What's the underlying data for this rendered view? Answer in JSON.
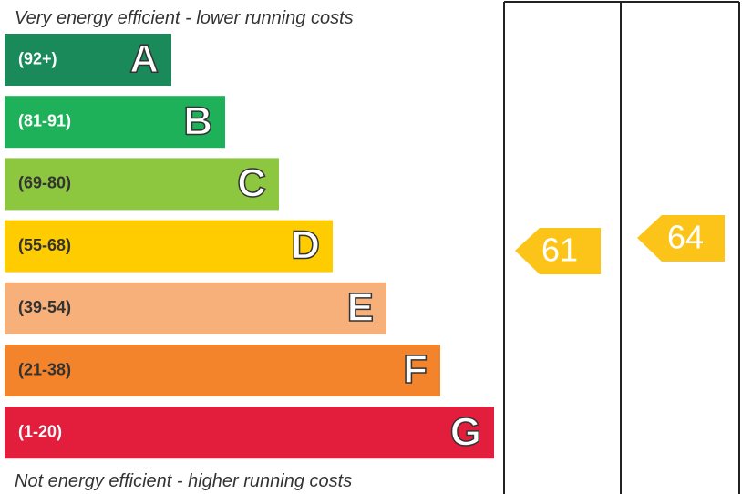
{
  "top_label": "Very energy efficient - lower running costs",
  "bottom_label": "Not energy efficient - higher running costs",
  "bands": [
    {
      "range": "(92+)",
      "letter": "A",
      "color": "#1a8a5a",
      "text_color": "#ffffff"
    },
    {
      "range": "(81-91)",
      "letter": "B",
      "color": "#1fb15a",
      "text_color": "#ffffff"
    },
    {
      "range": "(69-80)",
      "letter": "C",
      "color": "#8dc63f",
      "text_color": "#333333"
    },
    {
      "range": "(55-68)",
      "letter": "D",
      "color": "#ffcc00",
      "text_color": "#333333"
    },
    {
      "range": "(39-54)",
      "letter": "E",
      "color": "#f7b07a",
      "text_color": "#333333"
    },
    {
      "range": "(21-38)",
      "letter": "F",
      "color": "#f3842b",
      "text_color": "#333333"
    },
    {
      "range": "(1-20)",
      "letter": "G",
      "color": "#e31d3c",
      "text_color": "#ffffff"
    }
  ],
  "current": {
    "value": "61",
    "color": "#fcc419"
  },
  "potential": {
    "value": "64",
    "color": "#fcc419"
  }
}
